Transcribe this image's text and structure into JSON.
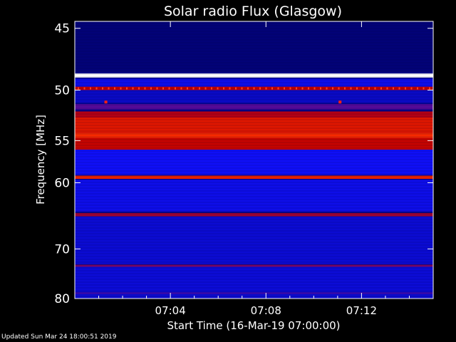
{
  "chart_data": {
    "type": "heatmap",
    "title": "Solar radio Flux (Glasgow)",
    "ylabel": "Frequency [MHz]",
    "xlabel": "Start Time (16-Mar-19 07:00:00)",
    "y_ticks": [
      45,
      50,
      55,
      60,
      70,
      80
    ],
    "ylim": [
      44.5,
      80
    ],
    "y_scale": "reciprocal",
    "x_ticks": [
      "07:04",
      "07:08",
      "07:12"
    ],
    "x_tick_minutes": [
      4,
      8,
      12
    ],
    "xlim_minutes": [
      0,
      15
    ],
    "grid": false,
    "colormap": [
      "#000060",
      "#1010ff",
      "#c00000",
      "#ff3000",
      "#ffffff"
    ],
    "bands": [
      {
        "freq_from": 44.5,
        "freq_to": 48.4,
        "level": 0.05
      },
      {
        "freq_from": 48.55,
        "freq_to": 48.9,
        "level": 1.0
      },
      {
        "freq_from": 49.0,
        "freq_to": 49.7,
        "level": 0.3
      },
      {
        "freq_from": 49.7,
        "freq_to": 50.0,
        "level": 0.6
      },
      {
        "freq_from": 50.0,
        "freq_to": 51.2,
        "level": 0.22
      },
      {
        "freq_from": 51.3,
        "freq_to": 51.8,
        "level": 0.45
      },
      {
        "freq_from": 52.0,
        "freq_to": 52.6,
        "level": 0.58
      },
      {
        "freq_from": 52.6,
        "freq_to": 54.2,
        "level": 0.72
      },
      {
        "freq_from": 54.2,
        "freq_to": 54.7,
        "level": 0.82
      },
      {
        "freq_from": 54.7,
        "freq_to": 56.0,
        "level": 0.62
      },
      {
        "freq_from": 56.0,
        "freq_to": 59.0,
        "level": 0.33
      },
      {
        "freq_from": 59.1,
        "freq_to": 59.5,
        "level": 0.78
      },
      {
        "freq_from": 59.6,
        "freq_to": 64.0,
        "level": 0.3
      },
      {
        "freq_from": 64.2,
        "freq_to": 64.7,
        "level": 0.55
      },
      {
        "freq_from": 64.7,
        "freq_to": 72.8,
        "level": 0.25
      },
      {
        "freq_from": 72.9,
        "freq_to": 73.3,
        "level": 0.5
      },
      {
        "freq_from": 73.3,
        "freq_to": 78.5,
        "level": 0.26
      },
      {
        "freq_from": 78.6,
        "freq_to": 79.0,
        "level": 0.42
      },
      {
        "freq_from": 79.0,
        "freq_to": 80.0,
        "level": 0.24
      }
    ],
    "spikes": [
      {
        "minute": 1.3,
        "freq": 51.1
      },
      {
        "minute": 11.1,
        "freq": 51.1
      }
    ]
  },
  "footer": {
    "updated": "Updated Sun Mar 24 18:00:51 2019"
  }
}
